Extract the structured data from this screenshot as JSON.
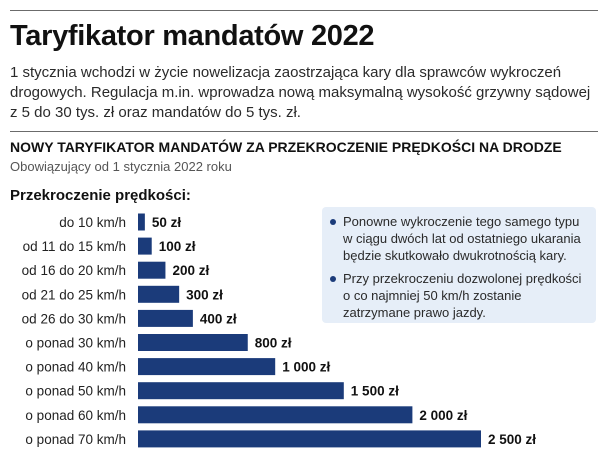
{
  "header": {
    "title": "Taryfikator mandatów 2022",
    "lead": "1 stycznia wchodzi w życie nowelizacja zaostrzająca kary dla sprawców wykroczeń drogowych. Regulacja m.in. wprowadza nową maksymalną wysokość grzywny sądowej z 5 do 30 tys. zł oraz mandatów do 5 tys. zł."
  },
  "colors": {
    "bar": "#1b3b7a",
    "note_background": "#e6eef8"
  },
  "chart_data": {
    "type": "bar",
    "orientation": "horizontal",
    "title": "NOWY TARYFIKATOR MANDATÓW ZA PRZEKROCZENIE PRĘDKOŚCI NA DRODZE",
    "subtitle": "Obowiązujący od 1 stycznia 2022 roku",
    "category_heading": "Przekroczenie prędkości:",
    "categories": [
      "do 10 km/h",
      "od 11 do 15 km/h",
      "od 16 do 20 km/h",
      "od 21 do 25 km/h",
      "od 26 do 30 km/h",
      "o ponad 30 km/h",
      "o ponad 40 km/h",
      "o ponad 50 km/h",
      "o ponad 60 km/h",
      "o ponad 70 km/h"
    ],
    "values": [
      50,
      100,
      200,
      300,
      400,
      800,
      1000,
      1500,
      2000,
      2500
    ],
    "value_labels": [
      "50 zł",
      "100 zł",
      "200 zł",
      "300 zł",
      "400 zł",
      "800 zł",
      "1 000 zł",
      "1 500 zł",
      "2 000 zł",
      "2 500 zł"
    ],
    "xlim": [
      0,
      2500
    ],
    "grid": false,
    "legend": "none"
  },
  "notes": [
    "Ponowne wykroczenie tego samego typu w ciągu dwóch lat od ostatniego ukarania będzie skutkowało dwukrotnością kary.",
    "Przy przekroczeniu dozwolonej prędkości o co najmniej 50 km/h zostanie zatrzymane prawo jazdy."
  ]
}
